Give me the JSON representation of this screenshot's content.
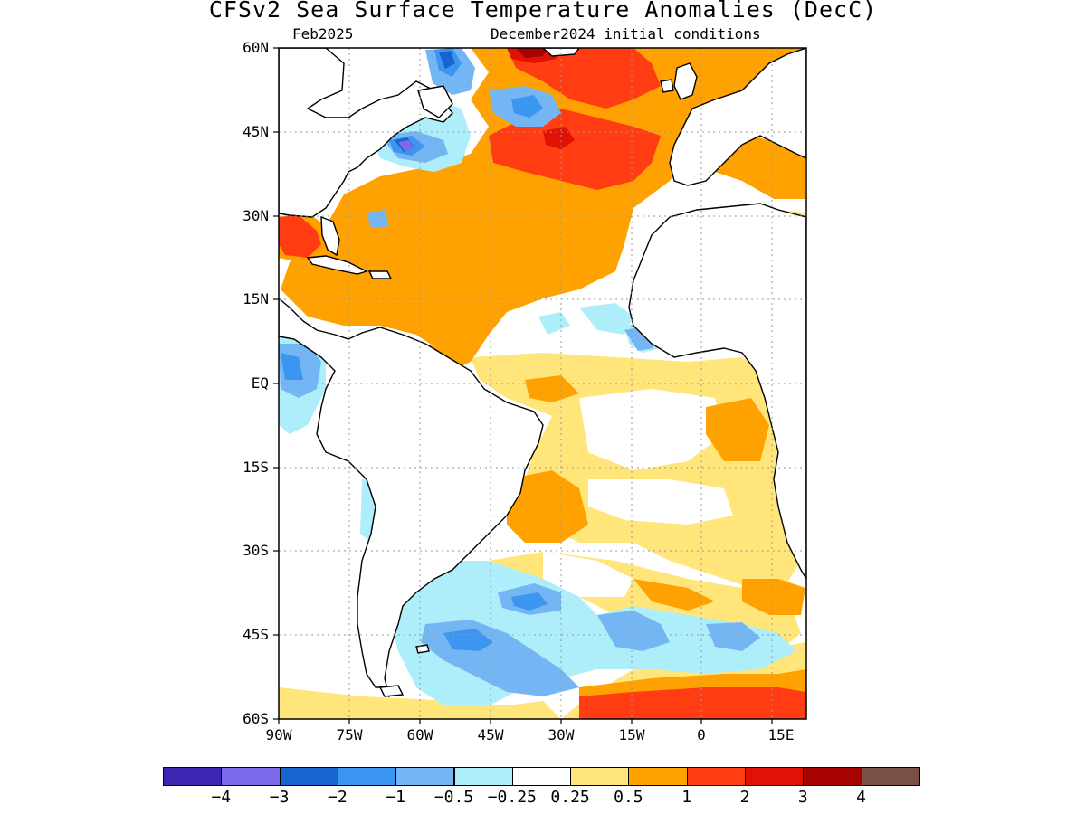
{
  "title": "CFSv2 Sea Surface Temperature Anomalies (DecC)",
  "valid_month": "Feb2025",
  "init_label": "December2024 initial conditions",
  "lat_ticks": [
    "60N",
    "45N",
    "30N",
    "15N",
    "EQ",
    "15S",
    "30S",
    "45S",
    "60S"
  ],
  "lon_ticks": [
    "90W",
    "75W",
    "60W",
    "45W",
    "30W",
    "15W",
    "0",
    "15E"
  ],
  "colorbar": {
    "colors": [
      "#3d27b2",
      "#7a69e9",
      "#1764d0",
      "#3b96f1",
      "#74b5f4",
      "#aeeefa",
      "#ffffff",
      "#ffe57a",
      "#ffa201",
      "#ff3c12",
      "#e01206",
      "#a60200",
      "#7a5044"
    ],
    "labels": [
      "−4",
      "−3",
      "−2",
      "−1",
      "−0.5",
      "−0.25",
      "0.25",
      "0.5",
      "1",
      "2",
      "3",
      "4"
    ]
  },
  "colors": {
    "land": "#ffffff",
    "coast": "#000000",
    "grid": "#9a9a9a"
  },
  "map_extent": {
    "lon_range": [
      -90,
      20
    ],
    "lat_range": [
      -60,
      60
    ]
  }
}
